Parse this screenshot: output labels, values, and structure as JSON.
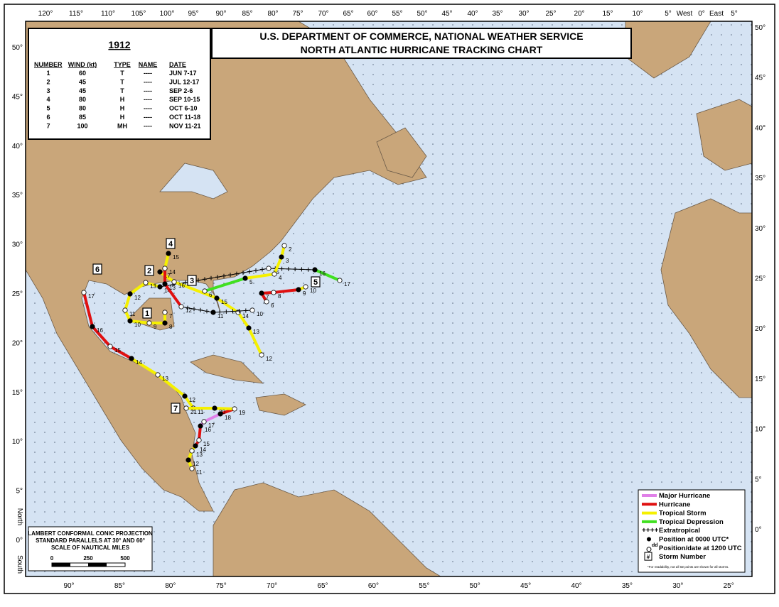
{
  "title": {
    "line1": "U.S. DEPARTMENT OF COMMERCE, NATIONAL WEATHER SERVICE",
    "line2": "NORTH ATLANTIC HURRICANE TRACKING CHART"
  },
  "season": {
    "year": "1912",
    "headers": [
      "NUMBER",
      "WIND (kt)",
      "TYPE",
      "NAME",
      "DATE"
    ],
    "rows": [
      [
        "1",
        "60",
        "T",
        "----",
        "JUN 7-17"
      ],
      [
        "2",
        "45",
        "T",
        "----",
        "JUL 12-17"
      ],
      [
        "3",
        "45",
        "T",
        "----",
        "SEP 2-6"
      ],
      [
        "4",
        "80",
        "H",
        "----",
        "SEP 10-15"
      ],
      [
        "5",
        "80",
        "H",
        "----",
        "OCT 6-10"
      ],
      [
        "6",
        "85",
        "H",
        "----",
        "OCT 11-18"
      ],
      [
        "7",
        "100",
        "MH",
        "----",
        "NOV 11-21"
      ]
    ]
  },
  "top_labels": [
    "120°",
    "115°",
    "110°",
    "105°",
    "100°",
    "95°",
    "90°",
    "85°",
    "80°",
    "75°",
    "70°",
    "65°",
    "60°",
    "55°",
    "50°",
    "45°",
    "40°",
    "35°",
    "30°",
    "25°",
    "20°",
    "15°",
    "10°",
    "5°",
    "West",
    "0°",
    "East",
    "5°"
  ],
  "bottom_labels": [
    "90°",
    "85°",
    "80°",
    "75°",
    "70°",
    "65°",
    "60°",
    "55°",
    "50°",
    "45°",
    "40°",
    "35°",
    "30°",
    "25°"
  ],
  "left_labels": [
    "50°",
    "45°",
    "40°",
    "35°",
    "30°",
    "25°",
    "20°",
    "15°",
    "10°",
    "5°",
    "0°"
  ],
  "left_words": [
    "North",
    "South"
  ],
  "right_labels": [
    "50°",
    "45°",
    "40°",
    "35°",
    "30°",
    "25°",
    "20°",
    "15°",
    "10°",
    "5°",
    "0°"
  ],
  "tracks": [
    {
      "number": "1",
      "days": [
        "7",
        "8",
        "9",
        "10",
        "11",
        "12",
        "13",
        "14",
        "15",
        "16",
        "17"
      ]
    },
    {
      "number": "2",
      "days": [
        "12",
        "13",
        "14",
        "15",
        "16",
        "17"
      ]
    },
    {
      "number": "3",
      "days": [
        "2",
        "3",
        "4",
        "5",
        "6"
      ]
    },
    {
      "number": "4",
      "days": [
        "10",
        "11",
        "12",
        "13",
        "14",
        "15"
      ]
    },
    {
      "number": "5",
      "days": [
        "6",
        "7",
        "8",
        "9",
        "10"
      ]
    },
    {
      "number": "6",
      "days": [
        "11",
        "12",
        "13",
        "14",
        "15",
        "16",
        "17"
      ]
    },
    {
      "number": "7",
      "days": [
        "11",
        "12",
        "13",
        "14",
        "15",
        "16",
        "17",
        "18",
        "19",
        "20",
        "21"
      ]
    }
  ],
  "legend": {
    "items": [
      "Major Hurricane",
      "Hurricane",
      "Tropical Storm",
      "Tropical Depression",
      "Extratropical",
      "Position at 0000 UTC*",
      "Position/date at 1200 UTC",
      "Storm Number"
    ],
    "dd": "dd",
    "hash": "#",
    "note": "*For readability, not all 0Z points are shown for all storms."
  },
  "projection": {
    "lines": [
      "LAMBERT CONFORMAL CONIC PROJECTION",
      "STANDARD PARALLELS AT 30° AND 60°",
      "SCALE OF NAUTICAL MILES"
    ],
    "scale": [
      "0",
      "250",
      "500"
    ]
  }
}
